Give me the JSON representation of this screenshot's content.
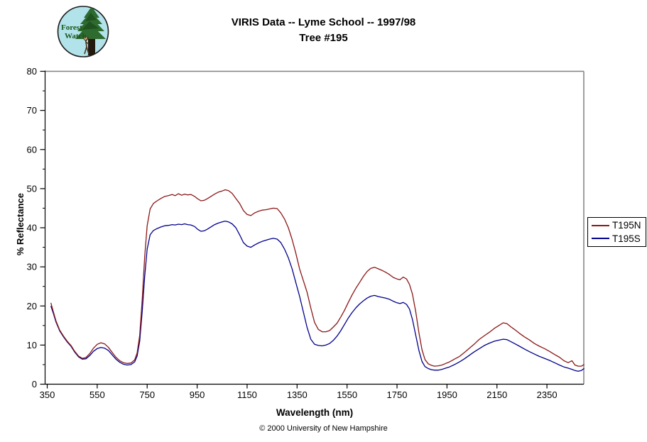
{
  "logo": {
    "line1": "Forest",
    "line2": "Watch"
  },
  "title": {
    "line1": "VIRIS Data -- Lyme School -- 1997/98",
    "line2": "Tree #195"
  },
  "footer": "© 2000 University of New Hampshire",
  "chart_data": {
    "type": "line",
    "title": "VIRIS Data -- Lyme School -- 1997/98 Tree #195",
    "xlabel": "Wavelength (nm)",
    "ylabel": "% Reflectance",
    "xlim": [
      341,
      2510
    ],
    "ylim": [
      0,
      80
    ],
    "x_ticks": [
      350,
      550,
      750,
      950,
      1150,
      1350,
      1550,
      1750,
      1950,
      2150,
      2350
    ],
    "y_ticks": [
      0,
      10,
      20,
      30,
      40,
      50,
      60,
      70,
      80
    ],
    "y_minor_step": 5,
    "grid": false,
    "legend_position": "right-outside",
    "frame_color": "#808080",
    "axis_color": "#000000",
    "x": [
      365,
      375,
      385,
      400,
      415,
      430,
      445,
      460,
      475,
      490,
      505,
      520,
      535,
      550,
      565,
      580,
      595,
      610,
      625,
      640,
      655,
      670,
      685,
      700,
      710,
      720,
      730,
      740,
      750,
      762,
      775,
      790,
      805,
      820,
      835,
      850,
      862,
      875,
      888,
      900,
      912,
      925,
      940,
      952,
      965,
      978,
      990,
      1005,
      1020,
      1035,
      1050,
      1062,
      1075,
      1090,
      1105,
      1120,
      1135,
      1150,
      1165,
      1180,
      1195,
      1210,
      1225,
      1240,
      1255,
      1270,
      1285,
      1300,
      1315,
      1330,
      1345,
      1360,
      1375,
      1390,
      1405,
      1420,
      1435,
      1450,
      1465,
      1480,
      1495,
      1510,
      1525,
      1540,
      1555,
      1570,
      1585,
      1600,
      1615,
      1630,
      1645,
      1660,
      1675,
      1690,
      1705,
      1720,
      1735,
      1750,
      1762,
      1775,
      1788,
      1800,
      1812,
      1825,
      1838,
      1850,
      1862,
      1875,
      1888,
      1900,
      1915,
      1930,
      1945,
      1960,
      1980,
      2000,
      2020,
      2040,
      2060,
      2080,
      2100,
      2120,
      2140,
      2160,
      2175,
      2190,
      2205,
      2220,
      2240,
      2260,
      2280,
      2300,
      2320,
      2340,
      2360,
      2380,
      2400,
      2418,
      2435,
      2450,
      2462,
      2475,
      2488,
      2498
    ],
    "series": [
      {
        "name": "T195N",
        "color": "#8B1717",
        "values": [
          20.7,
          18.4,
          16.2,
          13.8,
          12.3,
          11.0,
          9.9,
          8.4,
          7.2,
          6.6,
          6.8,
          7.8,
          9.2,
          10.2,
          10.6,
          10.3,
          9.4,
          8.1,
          6.9,
          6.0,
          5.5,
          5.3,
          5.4,
          6.2,
          8.0,
          12.5,
          21.5,
          32.5,
          40.5,
          44.8,
          46.2,
          46.9,
          47.5,
          48.0,
          48.2,
          48.5,
          48.2,
          48.7,
          48.3,
          48.6,
          48.4,
          48.5,
          48.0,
          47.4,
          46.9,
          47.0,
          47.4,
          48.0,
          48.6,
          49.1,
          49.4,
          49.7,
          49.5,
          48.8,
          47.5,
          46.2,
          44.4,
          43.4,
          43.1,
          43.8,
          44.2,
          44.5,
          44.6,
          44.8,
          45.0,
          44.9,
          43.8,
          42.2,
          40.0,
          37.0,
          33.5,
          29.5,
          26.5,
          23.5,
          19.5,
          15.8,
          14.0,
          13.4,
          13.4,
          13.7,
          14.6,
          15.6,
          17.2,
          18.9,
          20.9,
          22.8,
          24.5,
          26.0,
          27.5,
          28.8,
          29.6,
          29.9,
          29.5,
          29.1,
          28.6,
          28.0,
          27.3,
          26.9,
          26.7,
          27.4,
          26.9,
          25.5,
          23.0,
          18.5,
          13.0,
          8.8,
          6.3,
          5.2,
          4.8,
          4.6,
          4.7,
          4.9,
          5.3,
          5.7,
          6.4,
          7.1,
          8.1,
          9.2,
          10.3,
          11.5,
          12.4,
          13.3,
          14.3,
          15.1,
          15.7,
          15.5,
          14.7,
          14.0,
          13.0,
          12.1,
          11.3,
          10.4,
          9.7,
          9.1,
          8.4,
          7.6,
          6.9,
          6.0,
          5.5,
          6.0,
          4.9,
          4.6,
          4.6,
          5.0
        ]
      },
      {
        "name": "T195S",
        "color": "#00008B",
        "values": [
          19.9,
          18.0,
          15.9,
          13.6,
          12.1,
          10.8,
          9.7,
          8.2,
          7.0,
          6.4,
          6.5,
          7.3,
          8.4,
          9.1,
          9.4,
          9.2,
          8.6,
          7.5,
          6.4,
          5.6,
          5.1,
          4.9,
          5.0,
          5.7,
          7.2,
          11.0,
          18.5,
          27.5,
          34.5,
          38.2,
          39.3,
          39.8,
          40.2,
          40.5,
          40.6,
          40.8,
          40.7,
          40.9,
          40.8,
          41.0,
          40.8,
          40.7,
          40.3,
          39.6,
          39.1,
          39.2,
          39.6,
          40.2,
          40.8,
          41.2,
          41.5,
          41.7,
          41.5,
          41.0,
          40.0,
          38.2,
          36.2,
          35.3,
          35.0,
          35.6,
          36.1,
          36.5,
          36.8,
          37.1,
          37.3,
          37.1,
          36.2,
          34.5,
          32.3,
          29.5,
          26.0,
          22.5,
          18.5,
          14.5,
          11.5,
          10.2,
          9.9,
          9.8,
          10.0,
          10.4,
          11.2,
          12.3,
          13.7,
          15.3,
          16.9,
          18.3,
          19.5,
          20.5,
          21.3,
          22.0,
          22.5,
          22.7,
          22.4,
          22.2,
          22.0,
          21.7,
          21.2,
          20.8,
          20.6,
          20.9,
          20.4,
          19.2,
          16.5,
          12.5,
          8.5,
          5.8,
          4.5,
          4.0,
          3.7,
          3.6,
          3.6,
          3.8,
          4.1,
          4.4,
          5.0,
          5.7,
          6.5,
          7.4,
          8.3,
          9.1,
          9.9,
          10.5,
          11.0,
          11.3,
          11.5,
          11.4,
          10.9,
          10.4,
          9.7,
          9.0,
          8.3,
          7.7,
          7.1,
          6.6,
          6.1,
          5.5,
          4.9,
          4.4,
          4.1,
          3.8,
          3.5,
          3.3,
          3.5,
          4.0
        ]
      }
    ]
  }
}
